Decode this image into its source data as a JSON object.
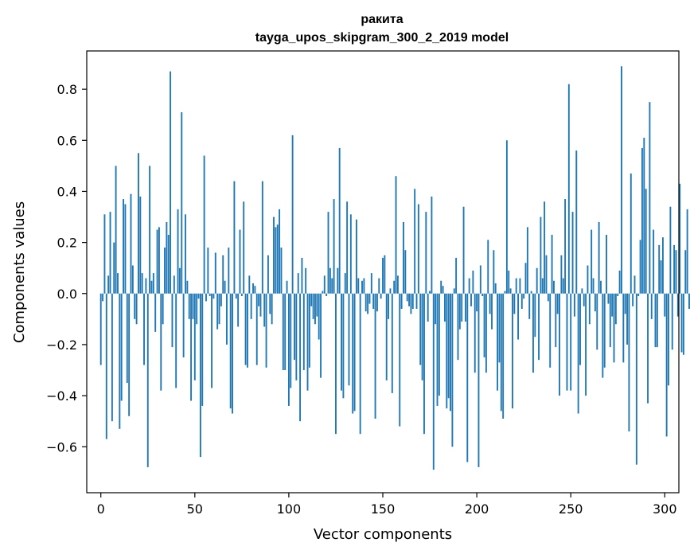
{
  "chart_data": {
    "type": "bar",
    "title": "ракита",
    "subtitle": "tayga_upos_skipgram_300_2_2019 model",
    "xlabel": "Vector components",
    "ylabel": "Components values",
    "xlim": [
      -7.5,
      307.5
    ],
    "ylim": [
      -0.78,
      0.95
    ],
    "x_ticks": [
      0,
      50,
      100,
      150,
      200,
      250,
      300
    ],
    "x_tick_labels": [
      "0",
      "50",
      "100",
      "150",
      "200",
      "250",
      "300"
    ],
    "y_ticks": [
      -0.6,
      -0.4,
      -0.2,
      0.0,
      0.2,
      0.4,
      0.6,
      0.8
    ],
    "y_tick_labels": [
      "−0.6",
      "−0.4",
      "−0.2",
      "0.0",
      "0.2",
      "0.4",
      "0.6",
      "0.8"
    ],
    "grid": false,
    "bar_color": "#1f77b4",
    "values": [
      -0.28,
      -0.03,
      0.31,
      -0.57,
      0.07,
      0.32,
      -0.5,
      0.2,
      0.5,
      0.08,
      -0.53,
      -0.42,
      0.37,
      0.35,
      -0.35,
      -0.48,
      0.39,
      0.11,
      -0.1,
      -0.12,
      0.55,
      0.38,
      0.08,
      -0.28,
      0.06,
      -0.68,
      0.5,
      0.05,
      0.08,
      -0.15,
      0.25,
      0.26,
      -0.38,
      -0.12,
      0.18,
      0.28,
      0.23,
      0.87,
      -0.21,
      0.07,
      -0.37,
      0.33,
      0.1,
      0.71,
      -0.25,
      0.31,
      0.05,
      -0.1,
      -0.42,
      -0.1,
      -0.34,
      -0.12,
      -0.02,
      -0.64,
      -0.44,
      0.54,
      -0.03,
      0.18,
      -0.01,
      -0.37,
      -0.02,
      0.16,
      -0.14,
      -0.12,
      -0.05,
      0.15,
      0.05,
      -0.2,
      0.18,
      -0.45,
      -0.47,
      0.44,
      -0.02,
      -0.13,
      0.25,
      -0.01,
      0.36,
      -0.28,
      -0.29,
      0.07,
      -0.1,
      0.04,
      0.03,
      -0.28,
      -0.05,
      -0.09,
      0.44,
      -0.13,
      -0.29,
      0.15,
      -0.08,
      -0.12,
      0.3,
      0.26,
      0.27,
      0.33,
      0.18,
      -0.3,
      -0.3,
      0.05,
      -0.44,
      -0.37,
      0.62,
      -0.26,
      -0.34,
      0.08,
      -0.5,
      0.14,
      -0.3,
      0.1,
      -0.38,
      -0.29,
      -0.05,
      -0.1,
      -0.12,
      -0.09,
      -0.18,
      -0.33,
      0.01,
      0.07,
      -0.01,
      0.32,
      0.1,
      0.06,
      0.37,
      -0.55,
      0.1,
      0.57,
      -0.38,
      -0.41,
      0.08,
      0.36,
      -0.36,
      0.31,
      -0.47,
      -0.46,
      0.29,
      0.06,
      -0.55,
      0.05,
      0.06,
      -0.07,
      -0.08,
      -0.04,
      0.08,
      -0.06,
      -0.49,
      -0.07,
      0.06,
      -0.02,
      0.14,
      0.15,
      -0.34,
      -0.1,
      0.02,
      -0.39,
      0.05,
      0.46,
      0.07,
      -0.52,
      -0.06,
      0.28,
      0.17,
      -0.03,
      -0.05,
      -0.08,
      -0.06,
      0.41,
      -0.06,
      0.35,
      -0.28,
      -0.34,
      -0.55,
      0.32,
      -0.11,
      0.01,
      0.38,
      -0.69,
      -0.12,
      -0.44,
      -0.4,
      0.05,
      0.03,
      -0.11,
      -0.45,
      -0.41,
      -0.46,
      -0.6,
      0.02,
      0.14,
      -0.26,
      -0.14,
      -0.11,
      0.34,
      -0.11,
      -0.66,
      0.06,
      -0.05,
      0.09,
      -0.31,
      -0.07,
      -0.68,
      0.11,
      -0.01,
      -0.25,
      -0.31,
      0.21,
      -0.08,
      -0.14,
      0.17,
      0.04,
      -0.38,
      -0.27,
      -0.46,
      -0.49,
      0.01,
      0.6,
      0.09,
      0.02,
      -0.45,
      -0.08,
      0.06,
      -0.18,
      0.06,
      -0.06,
      -0.02,
      0.12,
      0.26,
      -0.1,
      0.01,
      -0.31,
      -0.17,
      0.1,
      -0.26,
      0.3,
      0.06,
      0.36,
      0.15,
      -0.03,
      -0.29,
      0.23,
      0.05,
      -0.21,
      -0.08,
      -0.4,
      0.15,
      0.06,
      0.37,
      -0.38,
      0.82,
      -0.38,
      0.32,
      -0.09,
      0.56,
      -0.47,
      -0.28,
      0.02,
      -0.05,
      -0.4,
      0.11,
      -0.12,
      0.25,
      0.06,
      -0.07,
      -0.22,
      0.28,
      0.05,
      -0.33,
      -0.29,
      0.23,
      -0.04,
      -0.21,
      -0.09,
      -0.27,
      -0.12,
      -0.01,
      0.09,
      0.89,
      -0.27,
      -0.08,
      -0.2,
      -0.54,
      0.47,
      -0.05,
      0.07,
      -0.67,
      -0.01,
      0.21,
      0.57,
      0.61,
      0.41,
      -0.43,
      0.75,
      -0.1,
      0.25,
      -0.21,
      -0.21,
      0.19,
      0.13,
      0.22,
      -0.09,
      -0.56,
      -0.36,
      0.34,
      -0.22,
      0.19,
      0.17,
      -0.09,
      0.43,
      -0.23,
      -0.24,
      0.17,
      0.33,
      -0.06
    ]
  }
}
